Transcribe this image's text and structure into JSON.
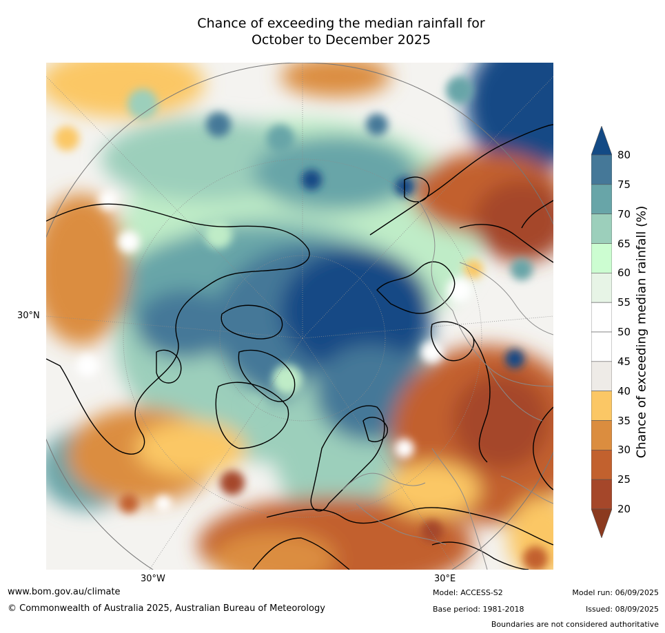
{
  "title_line1": "Chance of exceeding the median rainfall for",
  "title_line2": "October to December 2025",
  "map": {
    "projection": "north-polar stereographic",
    "lat_label": "30°N",
    "lon_label_west": "30°W",
    "lon_label_east": "30°E"
  },
  "colorbar": {
    "title": "Chance of exceeding median rainfall (%)",
    "ticks": [
      "20",
      "25",
      "30",
      "35",
      "40",
      "45",
      "50",
      "55",
      "60",
      "65",
      "70",
      "75",
      "80"
    ],
    "colors": [
      "#8b3a1f",
      "#a5472a",
      "#c2612e",
      "#db8d3f",
      "#fbc765",
      "#eeebe7",
      "#ffffff",
      "#ffffff",
      "#e7f4e6",
      "#ccfdd1",
      "#9ccfbb",
      "#68a5a8",
      "#457898",
      "#134a85"
    ],
    "extend": "both"
  },
  "footer": {
    "website": "www.bom.gov.au/climate",
    "copyright": "© Commonwealth of Australia 2025, Australian Bureau of Meteorology",
    "model": "Model: ACCESS-S2",
    "base_period": "Base period: 1981-2018",
    "model_run": "Model run: 06/09/2025",
    "issued": "Issued: 08/09/2025",
    "disclaimer": "Boundaries are not considered authoritative"
  }
}
